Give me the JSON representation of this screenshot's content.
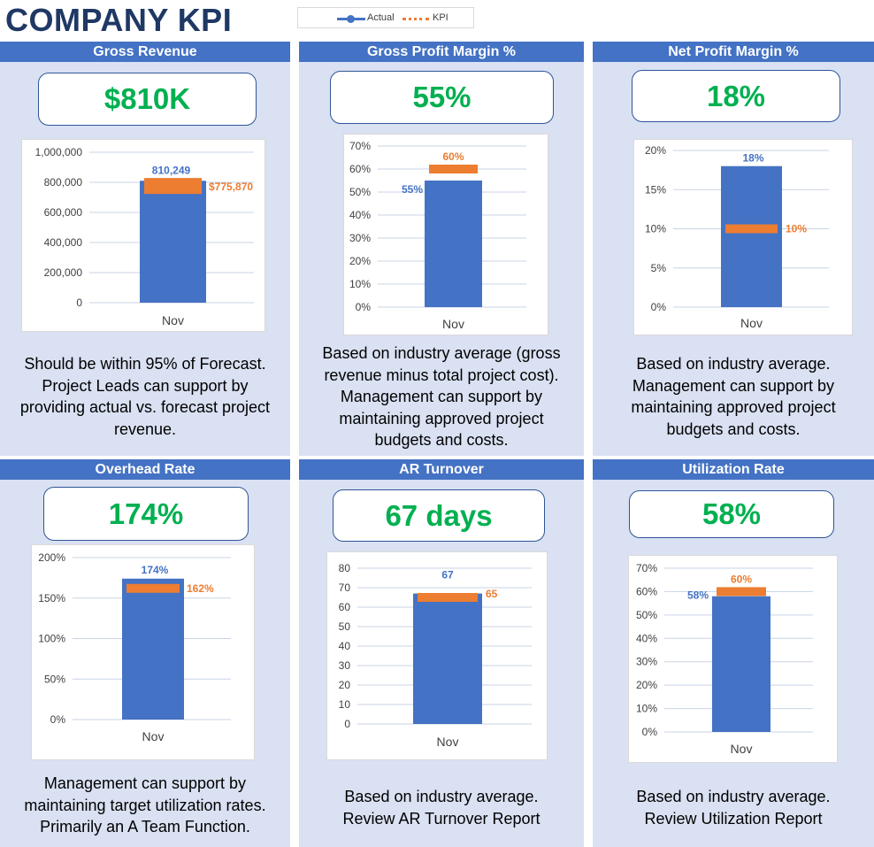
{
  "page": {
    "title": "COMPANY KPI"
  },
  "legend": {
    "actual_label": "Actual",
    "kpi_label": "KPI"
  },
  "colors": {
    "actual": "#4472c4",
    "kpi": "#ed7d31",
    "value": "#00b050",
    "header": "#4472c4",
    "panel": "#d9e1f2",
    "title": "#1f3864"
  },
  "panels": [
    {
      "title": "Gross Revenue",
      "value": "$810K",
      "description_lines": [
        "Should be within 95% of Forecast.",
        "Project Leads can support by",
        "providing actual vs. forecast project",
        "revenue."
      ]
    },
    {
      "title": "Gross Profit Margin %",
      "value": "55%",
      "description_lines": [
        "Based on industry average (gross",
        "revenue minus total project cost).",
        "Management can support by",
        "maintaining approved project",
        "budgets and costs."
      ]
    },
    {
      "title": "Net Profit Margin %",
      "value": "18%",
      "description_lines": [
        "Based on industry average.",
        "Management can support by",
        "maintaining approved project",
        "budgets and costs."
      ]
    },
    {
      "title": "Overhead Rate",
      "value": "174%",
      "description_lines": [
        "Management can support by",
        "maintaining target utilization rates.",
        "Primarily an A Team Function."
      ]
    },
    {
      "title": "AR Turnover",
      "value": "67 days",
      "description_lines": [
        "Based on industry average.",
        "Review AR Turnover Report"
      ]
    },
    {
      "title": "Utilization Rate",
      "value": "58%",
      "description_lines": [
        "Based on industry average.",
        "Review Utilization Report"
      ]
    }
  ],
  "chart_data": [
    {
      "type": "bar",
      "title": "Gross Revenue",
      "categories": [
        "Nov"
      ],
      "series": [
        {
          "name": "Actual",
          "values": [
            810249
          ]
        },
        {
          "name": "KPI",
          "values": [
            775870
          ]
        }
      ],
      "ylim": [
        0,
        1000000
      ],
      "yticks": [
        0,
        200000,
        400000,
        600000,
        800000,
        1000000
      ],
      "ytick_labels": [
        "0",
        "200,000",
        "400,000",
        "600,000",
        "800,000",
        "1,000,000"
      ],
      "data_labels": {
        "actual": "810,249",
        "kpi": "$775,870"
      },
      "grid": true
    },
    {
      "type": "bar",
      "title": "Gross Profit Margin %",
      "categories": [
        "Nov"
      ],
      "series": [
        {
          "name": "Actual",
          "values": [
            55
          ]
        },
        {
          "name": "KPI",
          "values": [
            60
          ]
        }
      ],
      "ylim": [
        0,
        70
      ],
      "yticks": [
        0,
        10,
        20,
        30,
        40,
        50,
        60,
        70
      ],
      "ytick_labels": [
        "0%",
        "10%",
        "20%",
        "30%",
        "40%",
        "50%",
        "60%",
        "70%"
      ],
      "data_labels": {
        "actual": "55%",
        "kpi": "60%"
      },
      "grid": true
    },
    {
      "type": "bar",
      "title": "Net Profit Margin %",
      "categories": [
        "Nov"
      ],
      "series": [
        {
          "name": "Actual",
          "values": [
            18
          ]
        },
        {
          "name": "KPI",
          "values": [
            10
          ]
        }
      ],
      "ylim": [
        0,
        20
      ],
      "yticks": [
        0,
        5,
        10,
        15,
        20
      ],
      "ytick_labels": [
        "0%",
        "5%",
        "10%",
        "15%",
        "20%"
      ],
      "data_labels": {
        "actual": "18%",
        "kpi": "10%"
      },
      "grid": true
    },
    {
      "type": "bar",
      "title": "Overhead Rate",
      "categories": [
        "Nov"
      ],
      "series": [
        {
          "name": "Actual",
          "values": [
            174
          ]
        },
        {
          "name": "KPI",
          "values": [
            162
          ]
        }
      ],
      "ylim": [
        0,
        200
      ],
      "yticks": [
        0,
        50,
        100,
        150,
        200
      ],
      "ytick_labels": [
        "0%",
        "50%",
        "100%",
        "150%",
        "200%"
      ],
      "data_labels": {
        "actual": "174%",
        "kpi": "162%"
      },
      "grid": true
    },
    {
      "type": "bar",
      "title": "AR Turnover",
      "categories": [
        "Nov"
      ],
      "series": [
        {
          "name": "Actual",
          "values": [
            67
          ]
        },
        {
          "name": "KPI",
          "values": [
            65
          ]
        }
      ],
      "ylim": [
        0,
        80
      ],
      "yticks": [
        0,
        10,
        20,
        30,
        40,
        50,
        60,
        70,
        80
      ],
      "ytick_labels": [
        "0",
        "10",
        "20",
        "30",
        "40",
        "50",
        "60",
        "70",
        "80"
      ],
      "data_labels": {
        "actual": "67",
        "kpi": "65"
      },
      "grid": true
    },
    {
      "type": "bar",
      "title": "Utilization Rate",
      "categories": [
        "Nov"
      ],
      "series": [
        {
          "name": "Actual",
          "values": [
            58
          ]
        },
        {
          "name": "KPI",
          "values": [
            60
          ]
        }
      ],
      "ylim": [
        0,
        70
      ],
      "yticks": [
        0,
        10,
        20,
        30,
        40,
        50,
        60,
        70
      ],
      "ytick_labels": [
        "0%",
        "10%",
        "20%",
        "30%",
        "40%",
        "50%",
        "60%",
        "70%"
      ],
      "data_labels": {
        "actual": "58%",
        "kpi": "60%"
      },
      "grid": true
    }
  ]
}
